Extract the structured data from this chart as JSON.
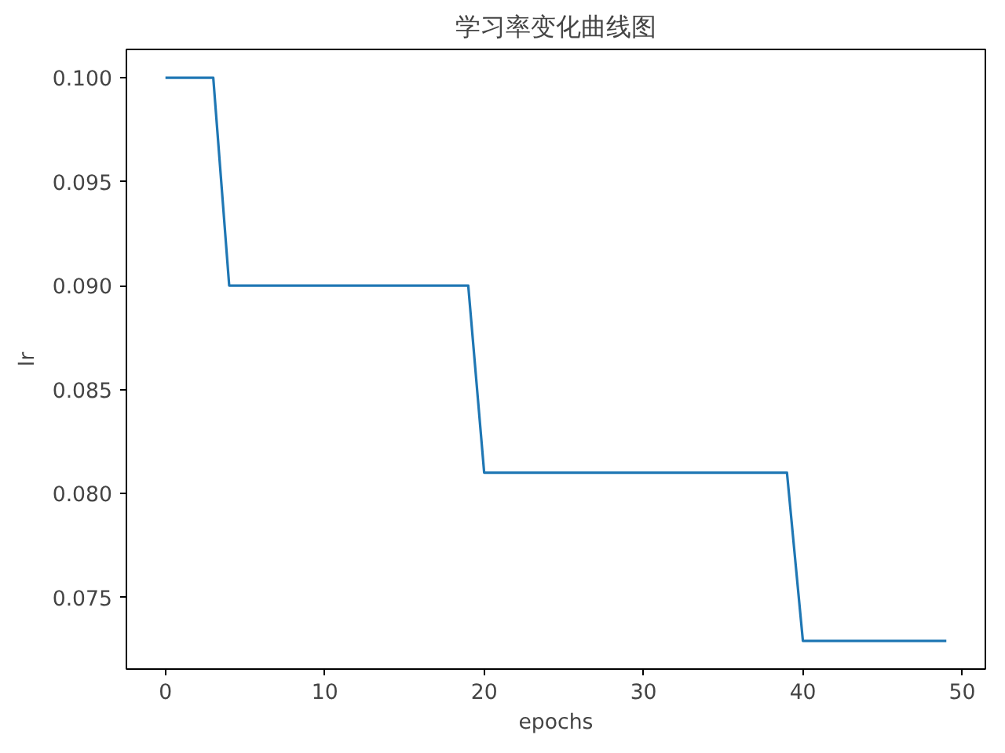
{
  "chart_data": {
    "type": "line",
    "title": "学习率变化曲线图",
    "xlabel": "epochs",
    "ylabel": "lr",
    "x": [
      0,
      3,
      4,
      19,
      20,
      39,
      40,
      49
    ],
    "series": [
      {
        "color": "#1f77b4",
        "values": [
          0.1,
          0.1,
          0.09,
          0.09,
          0.081,
          0.081,
          0.0729,
          0.0729
        ]
      }
    ],
    "xlim": [
      -2.45,
      51.45
    ],
    "ylim": [
      0.07155,
      0.10136
    ],
    "xticks": [
      0,
      10,
      20,
      30,
      40,
      50
    ],
    "yticks": [
      {
        "value": 0.075,
        "label": "0.075"
      },
      {
        "value": 0.08,
        "label": "0.080"
      },
      {
        "value": 0.085,
        "label": "0.085"
      },
      {
        "value": 0.09,
        "label": "0.090"
      },
      {
        "value": 0.095,
        "label": "0.095"
      },
      {
        "value": 0.1,
        "label": "0.100"
      }
    ],
    "grid": false,
    "marker": "none",
    "line_style": "solid"
  }
}
